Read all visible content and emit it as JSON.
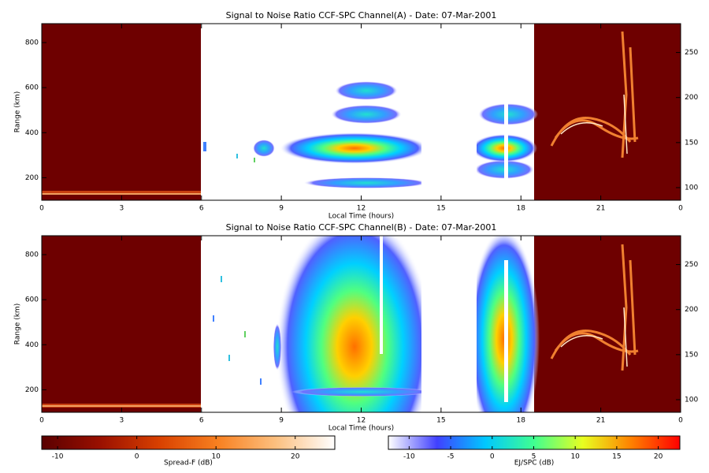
{
  "chart_data": [
    {
      "type": "heatmap",
      "title": "Signal to Noise Ratio CCF-SPC Channel(A) - Date: 07-Mar-2001",
      "x_label": "Local Time (hours)",
      "y_label": "Range (km)",
      "xlim": [
        0,
        24
      ],
      "xticks": [
        0,
        3,
        6,
        9,
        12,
        15,
        18,
        21,
        {
          "value": 24,
          "label": "0"
        }
      ],
      "ylim": [
        100,
        884
      ],
      "yticks": [
        200,
        400,
        600,
        800
      ],
      "y2lim": [
        86,
        282
      ],
      "y2ticks": [
        100,
        150,
        200,
        250
      ]
    },
    {
      "type": "heatmap",
      "title": "Signal to Noise Ratio CCF-SPC Channel(B) - Date: 07-Mar-2001",
      "x_label": "Local Time (hours)",
      "y_label": "Range (km)",
      "xlim": [
        0,
        24
      ],
      "xticks": [
        0,
        3,
        6,
        9,
        12,
        15,
        18,
        21,
        {
          "value": 24,
          "label": "0"
        }
      ],
      "ylim": [
        100,
        884
      ],
      "yticks": [
        200,
        400,
        600,
        800
      ],
      "y2lim": [
        86,
        282
      ],
      "y2ticks": [
        100,
        150,
        200,
        250
      ]
    },
    {
      "type": "colorbar",
      "label": "Spread-F (dB)",
      "lim": [
        -12,
        25
      ],
      "ticks": [
        -10,
        0,
        10,
        20
      ],
      "colors": [
        "#5a0000",
        "#9a1000",
        "#d84000",
        "#f88020",
        "#fcc080",
        "#ffffff"
      ]
    },
    {
      "type": "colorbar",
      "label": "EJ/SPC (dB)",
      "lim": [
        -12.5,
        22.6
      ],
      "ticks": [
        -10,
        -5,
        0,
        5,
        10,
        15,
        20
      ],
      "colors": [
        "#ffffff",
        "#4040ff",
        "#00c8ff",
        "#40ff90",
        "#e8ff20",
        "#ff8000",
        "#ff0000"
      ]
    }
  ]
}
